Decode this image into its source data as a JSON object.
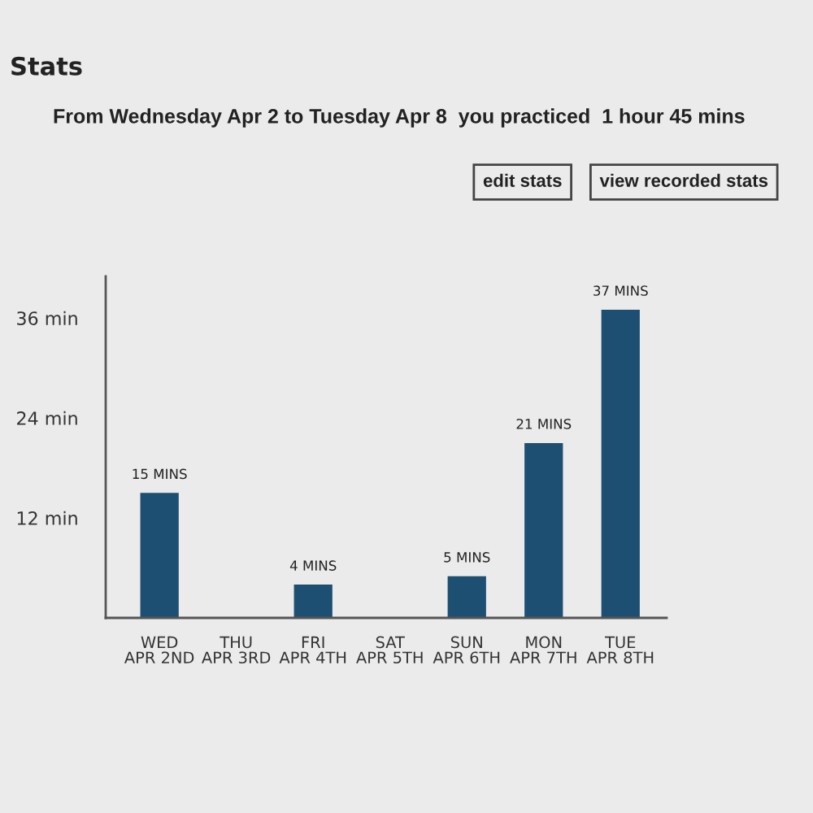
{
  "chart_data": {
    "type": "bar",
    "title": "From Wednesday Apr 2 to Tuesday Apr 8  you practiced  1 hour 45 mins",
    "annotations": [
      "Stats",
      "edit stats",
      "view recorded stats"
    ],
    "categories": [
      "WED\nAPR 2ND",
      "THU\nAPR 3RD",
      "FRI\nAPR 4TH",
      "SAT\nAPR 5TH",
      "SUN\nAPR 6TH",
      "MON\nAPR 7TH",
      "TUE\nAPR 8TH"
    ],
    "values": [
      15,
      0,
      4,
      0,
      5,
      21,
      37
    ],
    "value_labels": [
      "15 MINS",
      null,
      "4 MINS",
      null,
      "5 MINS",
      "21 MINS",
      "37 MINS"
    ],
    "color": "#1d4f73",
    "ylim": [
      0,
      41
    ],
    "yticks": [
      {
        "value": 12,
        "label": "12 min"
      },
      {
        "value": 24,
        "label": "24 min"
      },
      {
        "value": 36,
        "label": "36 min"
      }
    ],
    "grid": false,
    "legend": false
  }
}
